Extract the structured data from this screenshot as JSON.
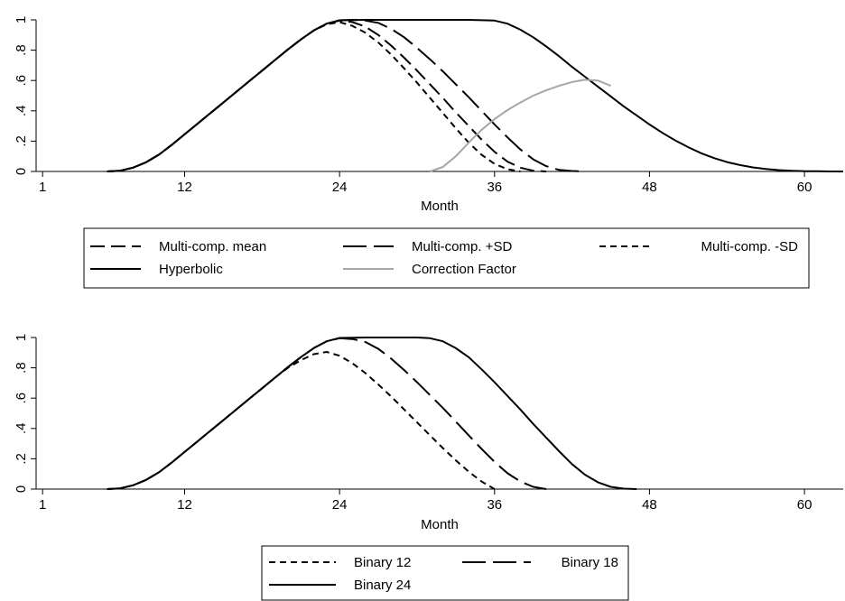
{
  "colors": {
    "axis": "#000000",
    "series_black": "#000000",
    "series_gray": "#a6a6a6",
    "background": "#ffffff"
  },
  "chart_data": [
    {
      "type": "line",
      "title": "",
      "xlabel": "Month",
      "ylabel": "",
      "xlim": [
        0.5,
        63
      ],
      "ylim": [
        0,
        1
      ],
      "xticks": [
        1,
        12,
        24,
        36,
        48,
        60
      ],
      "yticks": [
        0,
        0.2,
        0.4,
        0.6,
        0.8,
        1
      ],
      "ytick_labels": [
        "0",
        ".2",
        ".4",
        ".6",
        ".8",
        "1"
      ],
      "grid": false,
      "legend_position": "bottom",
      "legend_columns": 3,
      "series": [
        {
          "name": "Multi-comp. mean",
          "dash": "medium-dash",
          "color": "#000000",
          "x": [
            6,
            7,
            8,
            9,
            10,
            11,
            12,
            13,
            14,
            15,
            16,
            17,
            18,
            19,
            20,
            21,
            22,
            23,
            24,
            25,
            26,
            27,
            28,
            29,
            30,
            31,
            32,
            33,
            34,
            35,
            36,
            37,
            38,
            39,
            40
          ],
          "y": [
            0.0,
            0.005,
            0.025,
            0.06,
            0.11,
            0.175,
            0.245,
            0.315,
            0.385,
            0.455,
            0.525,
            0.595,
            0.665,
            0.735,
            0.805,
            0.87,
            0.93,
            0.975,
            0.995,
            0.985,
            0.955,
            0.9,
            0.83,
            0.75,
            0.665,
            0.575,
            0.485,
            0.39,
            0.3,
            0.21,
            0.13,
            0.065,
            0.025,
            0.005,
            0.0
          ]
        },
        {
          "name": "Multi-comp. +SD",
          "dash": "long-dash",
          "color": "#000000",
          "x": [
            6,
            7,
            8,
            9,
            10,
            11,
            12,
            13,
            14,
            15,
            16,
            17,
            18,
            19,
            20,
            21,
            22,
            23,
            24,
            25,
            26,
            27,
            28,
            29,
            30,
            31,
            32,
            33,
            34,
            35,
            36,
            37,
            38,
            39,
            40,
            41,
            42,
            43
          ],
          "y": [
            0.0,
            0.005,
            0.025,
            0.06,
            0.11,
            0.175,
            0.245,
            0.315,
            0.385,
            0.455,
            0.525,
            0.595,
            0.665,
            0.735,
            0.805,
            0.87,
            0.93,
            0.975,
            0.997,
            1.0,
            0.995,
            0.98,
            0.94,
            0.885,
            0.815,
            0.74,
            0.66,
            0.575,
            0.49,
            0.4,
            0.31,
            0.225,
            0.145,
            0.08,
            0.035,
            0.01,
            0.003,
            0.0
          ]
        },
        {
          "name": "Multi-comp. -SD",
          "dash": "short-dash",
          "color": "#000000",
          "x": [
            6,
            7,
            8,
            9,
            10,
            11,
            12,
            13,
            14,
            15,
            16,
            17,
            18,
            19,
            20,
            21,
            22,
            23,
            24,
            25,
            26,
            27,
            28,
            29,
            30,
            31,
            32,
            33,
            34,
            35,
            36,
            37,
            38
          ],
          "y": [
            0.0,
            0.005,
            0.025,
            0.06,
            0.11,
            0.175,
            0.245,
            0.315,
            0.385,
            0.455,
            0.525,
            0.595,
            0.665,
            0.735,
            0.805,
            0.87,
            0.93,
            0.97,
            0.985,
            0.96,
            0.915,
            0.85,
            0.77,
            0.68,
            0.585,
            0.485,
            0.385,
            0.285,
            0.19,
            0.11,
            0.05,
            0.015,
            0.0
          ]
        },
        {
          "name": "Hyperbolic",
          "dash": "solid",
          "color": "#000000",
          "x": [
            6,
            7,
            8,
            9,
            10,
            11,
            12,
            13,
            14,
            15,
            16,
            17,
            18,
            19,
            20,
            21,
            22,
            23,
            24,
            26,
            28,
            30,
            32,
            34,
            36,
            37,
            38,
            39,
            40,
            41,
            42,
            43,
            44,
            45,
            46,
            47,
            48,
            49,
            50,
            51,
            52,
            53,
            54,
            55,
            56,
            57,
            58,
            59,
            60,
            61,
            62,
            63
          ],
          "y": [
            0.0,
            0.005,
            0.025,
            0.06,
            0.11,
            0.175,
            0.245,
            0.315,
            0.385,
            0.455,
            0.525,
            0.595,
            0.665,
            0.735,
            0.805,
            0.87,
            0.93,
            0.975,
            0.997,
            1.0,
            1.0,
            1.0,
            1.0,
            1.0,
            0.995,
            0.975,
            0.935,
            0.885,
            0.825,
            0.76,
            0.69,
            0.625,
            0.56,
            0.495,
            0.43,
            0.37,
            0.31,
            0.255,
            0.205,
            0.16,
            0.12,
            0.088,
            0.062,
            0.042,
            0.027,
            0.016,
            0.009,
            0.005,
            0.002,
            0.001,
            0.0,
            0.0
          ]
        },
        {
          "name": "Correction Factor",
          "dash": "solid",
          "color": "#a6a6a6",
          "x": [
            31,
            32,
            33,
            34,
            35,
            36,
            37,
            38,
            39,
            40,
            41,
            42,
            43,
            44,
            45
          ],
          "y": [
            0.0,
            0.03,
            0.1,
            0.19,
            0.275,
            0.345,
            0.405,
            0.455,
            0.5,
            0.535,
            0.565,
            0.59,
            0.605,
            0.6,
            0.565
          ]
        }
      ]
    },
    {
      "type": "line",
      "title": "",
      "xlabel": "Month",
      "ylabel": "",
      "xlim": [
        0.5,
        63
      ],
      "ylim": [
        0,
        1
      ],
      "xticks": [
        1,
        12,
        24,
        36,
        48,
        60
      ],
      "yticks": [
        0,
        0.2,
        0.4,
        0.6,
        0.8,
        1
      ],
      "ytick_labels": [
        "0",
        ".2",
        ".4",
        ".6",
        ".8",
        "1"
      ],
      "grid": false,
      "legend_position": "bottom",
      "legend_columns": 2,
      "series": [
        {
          "name": "Binary 12",
          "dash": "short-dash",
          "color": "#000000",
          "x": [
            6,
            7,
            8,
            9,
            10,
            11,
            12,
            13,
            14,
            15,
            16,
            17,
            18,
            19,
            20,
            21,
            22,
            23,
            24,
            25,
            26,
            27,
            28,
            29,
            30,
            31,
            32,
            33,
            34,
            35,
            36
          ],
          "y": [
            0.0,
            0.005,
            0.025,
            0.06,
            0.11,
            0.175,
            0.245,
            0.315,
            0.385,
            0.455,
            0.525,
            0.595,
            0.665,
            0.735,
            0.8,
            0.85,
            0.89,
            0.905,
            0.88,
            0.83,
            0.765,
            0.69,
            0.61,
            0.525,
            0.44,
            0.355,
            0.27,
            0.19,
            0.115,
            0.05,
            0.0
          ]
        },
        {
          "name": "Binary 18",
          "dash": "long-dash",
          "color": "#000000",
          "x": [
            6,
            7,
            8,
            9,
            10,
            11,
            12,
            13,
            14,
            15,
            16,
            17,
            18,
            19,
            20,
            21,
            22,
            23,
            24,
            25,
            26,
            27,
            28,
            29,
            30,
            31,
            32,
            33,
            34,
            35,
            36,
            37,
            38,
            39,
            40
          ],
          "y": [
            0.0,
            0.005,
            0.025,
            0.06,
            0.11,
            0.175,
            0.245,
            0.315,
            0.385,
            0.455,
            0.525,
            0.595,
            0.665,
            0.735,
            0.805,
            0.87,
            0.93,
            0.975,
            0.995,
            0.99,
            0.97,
            0.925,
            0.86,
            0.785,
            0.705,
            0.62,
            0.535,
            0.445,
            0.355,
            0.265,
            0.18,
            0.105,
            0.05,
            0.015,
            0.0
          ]
        },
        {
          "name": "Binary 24",
          "dash": "solid",
          "color": "#000000",
          "x": [
            6,
            7,
            8,
            9,
            10,
            11,
            12,
            13,
            14,
            15,
            16,
            17,
            18,
            19,
            20,
            21,
            22,
            23,
            24,
            26,
            28,
            30,
            31,
            32,
            33,
            34,
            35,
            36,
            37,
            38,
            39,
            40,
            41,
            42,
            43,
            44,
            45,
            46,
            47
          ],
          "y": [
            0.0,
            0.005,
            0.025,
            0.06,
            0.11,
            0.175,
            0.245,
            0.315,
            0.385,
            0.455,
            0.525,
            0.595,
            0.665,
            0.735,
            0.805,
            0.87,
            0.93,
            0.975,
            0.997,
            1.0,
            1.0,
            1.0,
            0.995,
            0.975,
            0.93,
            0.87,
            0.79,
            0.705,
            0.615,
            0.525,
            0.43,
            0.34,
            0.25,
            0.165,
            0.095,
            0.045,
            0.015,
            0.003,
            0.0
          ]
        }
      ]
    }
  ]
}
